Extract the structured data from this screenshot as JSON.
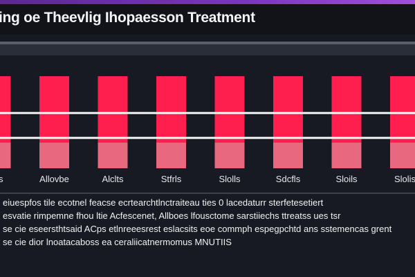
{
  "header": {
    "title": "ing oe Theevlig Ihopaesson Treatment",
    "accent_color": "#7b35c4"
  },
  "chart_data": {
    "type": "bar",
    "categories": [
      "Elis",
      "Allovbe",
      "Alclts",
      "Stfrls",
      "Slolls",
      "Sdcfls",
      "Sloils",
      "Slolis"
    ],
    "values": [
      100,
      100,
      100,
      100,
      100,
      100,
      100,
      100
    ],
    "series_colors": [
      "#ff1f4f",
      "#e8687f"
    ],
    "reference_lines": [
      60,
      33
    ],
    "ylim": [
      0,
      100
    ],
    "grid": false,
    "legend": "none"
  },
  "description": {
    "lines": [
      "eiuespfos tile ecotnel feacse ecrtearchtlnctraiteau ties  0 lacedaturr sterfetesetiert",
      "esvatie rimpemne fhou ltie Acfescenet,  Allboes lfousctome sarstiiechs ttreatss ues tsr",
      "se cie eseersthtsaid ACps etlnreeesrest eslacsits eoe commph espegpchtd ans sstemencas grent",
      "se cie dior lnoatacaboss ea ceraliicatnermomus MNUTIIS"
    ]
  }
}
